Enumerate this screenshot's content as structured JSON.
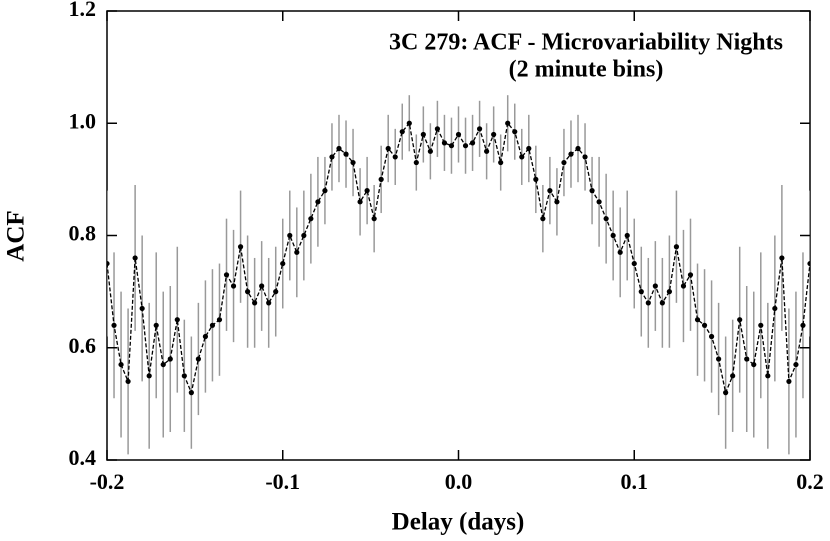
{
  "chart_data": {
    "type": "errorbar",
    "title": "3C 279: ACF - Microvariability Nights",
    "subtitle": "(2 minute bins)",
    "x_label": "Delay (days)",
    "y_label": "ACF",
    "x": [
      -0.2,
      -0.196,
      -0.192,
      -0.188,
      -0.184,
      -0.18,
      -0.176,
      -0.172,
      -0.168,
      -0.164,
      -0.16,
      -0.156,
      -0.152,
      -0.148,
      -0.144,
      -0.14,
      -0.136,
      -0.132,
      -0.128,
      -0.124,
      -0.12,
      -0.116,
      -0.112,
      -0.108,
      -0.104,
      -0.1,
      -0.096,
      -0.092,
      -0.088,
      -0.084,
      -0.08,
      -0.076,
      -0.072,
      -0.068,
      -0.064,
      -0.06,
      -0.056,
      -0.052,
      -0.048,
      -0.044,
      -0.04,
      -0.036,
      -0.032,
      -0.028,
      -0.024,
      -0.02,
      -0.016,
      -0.012,
      -0.008,
      -0.004,
      0,
      0.004,
      0.008,
      0.012,
      0.016,
      0.02,
      0.024,
      0.028,
      0.032,
      0.036,
      0.04,
      0.044,
      0.048,
      0.052,
      0.056,
      0.06,
      0.064,
      0.068,
      0.072,
      0.076,
      0.08,
      0.084,
      0.088,
      0.092,
      0.096,
      0.1,
      0.104,
      0.108,
      0.112,
      0.116,
      0.12,
      0.124,
      0.128,
      0.132,
      0.136,
      0.14,
      0.144,
      0.148,
      0.152,
      0.156,
      0.16,
      0.164,
      0.168,
      0.172,
      0.176,
      0.18,
      0.184,
      0.188,
      0.192,
      0.196,
      0.2
    ],
    "values": [
      0.75,
      0.64,
      0.57,
      0.54,
      0.76,
      0.67,
      0.55,
      0.64,
      0.57,
      0.58,
      0.65,
      0.55,
      0.52,
      0.58,
      0.62,
      0.64,
      0.65,
      0.73,
      0.71,
      0.78,
      0.7,
      0.68,
      0.71,
      0.68,
      0.7,
      0.75,
      0.8,
      0.77,
      0.8,
      0.83,
      0.86,
      0.88,
      0.94,
      0.955,
      0.945,
      0.93,
      0.86,
      0.88,
      0.83,
      0.9,
      0.955,
      0.94,
      0.985,
      1.0,
      0.93,
      0.98,
      0.95,
      0.99,
      0.965,
      0.96,
      0.98,
      0.96,
      0.965,
      0.99,
      0.95,
      0.98,
      0.93,
      1.0,
      0.985,
      0.94,
      0.955,
      0.9,
      0.83,
      0.88,
      0.86,
      0.93,
      0.945,
      0.955,
      0.94,
      0.88,
      0.86,
      0.83,
      0.8,
      0.77,
      0.8,
      0.75,
      0.7,
      0.68,
      0.71,
      0.68,
      0.7,
      0.78,
      0.71,
      0.73,
      0.65,
      0.64,
      0.62,
      0.58,
      0.52,
      0.55,
      0.65,
      0.58,
      0.57,
      0.64,
      0.55,
      0.67,
      0.76,
      0.54,
      0.57,
      0.64,
      0.75
    ],
    "errors": [
      0.13,
      0.13,
      0.13,
      0.13,
      0.13,
      0.13,
      0.13,
      0.13,
      0.13,
      0.13,
      0.13,
      0.1,
      0.1,
      0.1,
      0.1,
      0.1,
      0.1,
      0.1,
      0.1,
      0.1,
      0.1,
      0.08,
      0.08,
      0.08,
      0.08,
      0.08,
      0.08,
      0.08,
      0.08,
      0.08,
      0.08,
      0.06,
      0.06,
      0.06,
      0.06,
      0.06,
      0.06,
      0.06,
      0.06,
      0.06,
      0.06,
      0.05,
      0.05,
      0.05,
      0.05,
      0.05,
      0.05,
      0.05,
      0.05,
      0.05,
      0.05,
      0.05,
      0.05,
      0.05,
      0.05,
      0.05,
      0.05,
      0.05,
      0.05,
      0.05,
      0.06,
      0.06,
      0.06,
      0.06,
      0.06,
      0.06,
      0.06,
      0.06,
      0.06,
      0.06,
      0.08,
      0.08,
      0.08,
      0.08,
      0.08,
      0.08,
      0.08,
      0.08,
      0.08,
      0.08,
      0.1,
      0.1,
      0.1,
      0.1,
      0.1,
      0.1,
      0.1,
      0.1,
      0.1,
      0.1,
      0.13,
      0.13,
      0.13,
      0.13,
      0.13,
      0.13,
      0.13,
      0.13,
      0.13,
      0.13,
      0.13
    ],
    "color": "#000000",
    "error_color": "#999999",
    "xlim": [
      -0.2,
      0.2
    ],
    "ylim": [
      0.4,
      1.2
    ],
    "xticks": [
      -0.2,
      -0.1,
      {
        "value": 0,
        "label": "0.0"
      },
      0.1,
      0.2
    ],
    "yticks": [
      0.4,
      0.6,
      0.8,
      {
        "value": 1,
        "label": "1.0"
      },
      1.2
    ]
  }
}
